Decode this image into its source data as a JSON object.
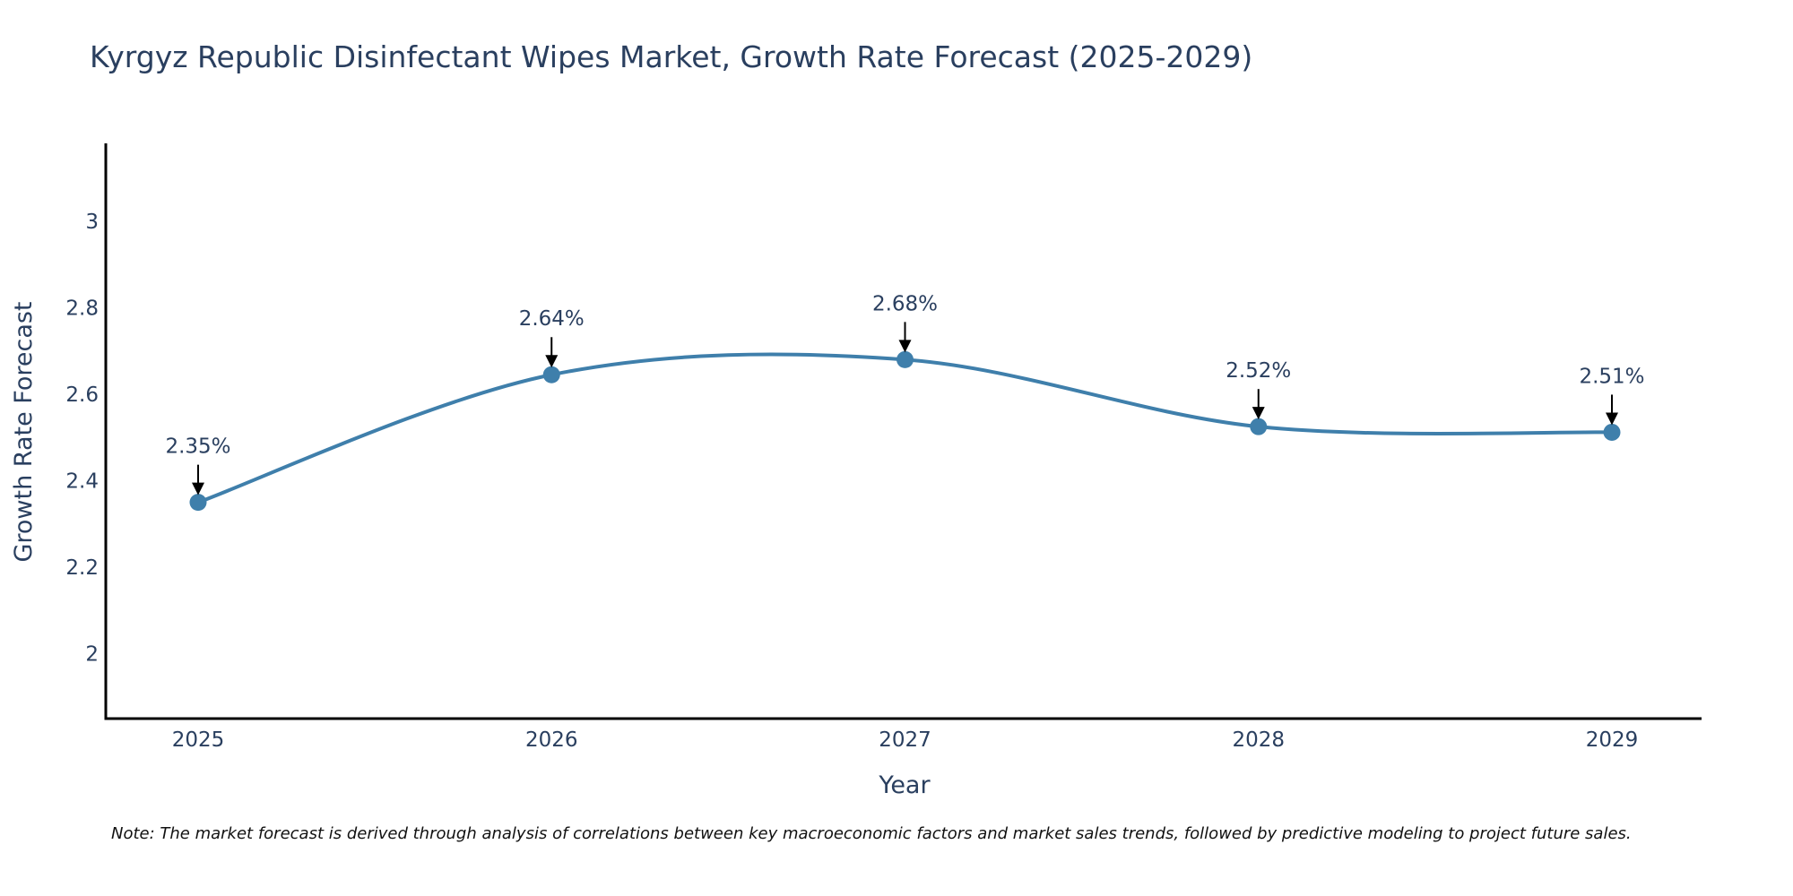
{
  "chart_data": {
    "type": "line",
    "title": "Kyrgyz Republic Disinfectant Wipes Market, Growth Rate Forecast (2025-2029)",
    "xlabel": "Year",
    "ylabel": "Growth Rate Forecast",
    "categories": [
      "2025",
      "2026",
      "2027",
      "2028",
      "2029"
    ],
    "values": [
      2.35,
      2.645,
      2.68,
      2.525,
      2.512
    ],
    "data_labels": [
      "2.35%",
      "2.64%",
      "2.68%",
      "2.52%",
      "2.51%"
    ],
    "yticks": [
      2,
      2.2,
      2.4,
      2.6,
      2.8,
      3
    ],
    "ytick_labels": [
      "2",
      "2.2",
      "2.4",
      "2.6",
      "2.8",
      "3"
    ],
    "ylim": [
      1.85,
      3.18
    ],
    "grid": false,
    "line_shape": "spline",
    "colors": {
      "line": "#3f7fab",
      "marker": "#3f7fab",
      "arrow": "#000000",
      "axis": "#000000"
    }
  },
  "note": "Note: The market forecast is derived through analysis of correlations between key macroeconomic factors and market sales trends, followed by predictive modeling to project future sales."
}
